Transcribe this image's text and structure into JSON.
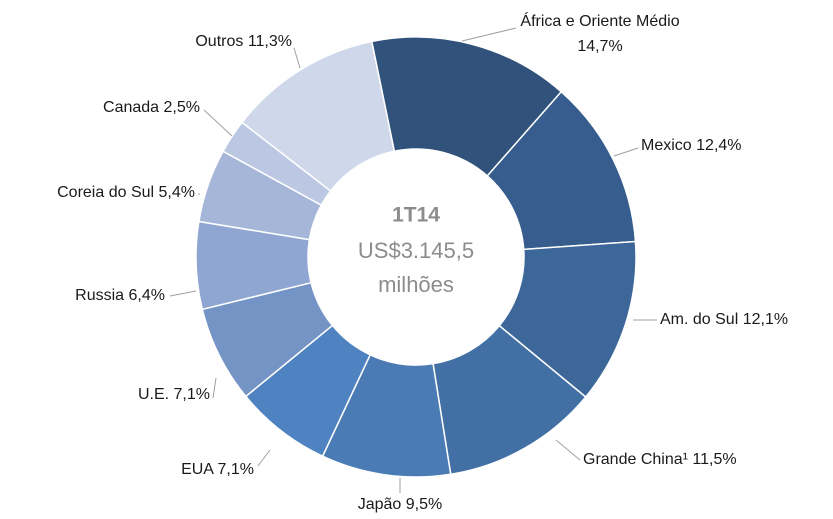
{
  "chart_data": {
    "type": "donut",
    "center_title": "1T14",
    "center_lines": [
      "US$3.145,5",
      "milhões"
    ],
    "categories": [
      "África e Oriente Médio",
      "Mexico",
      "Am. do Sul",
      "Grande China¹",
      "Japão",
      "EUA",
      "U.E.",
      "Russia",
      "Coreia do Sul",
      "Canada",
      "Outros"
    ],
    "values": [
      14.7,
      12.4,
      12.1,
      11.5,
      9.5,
      7.1,
      7.1,
      6.4,
      5.4,
      2.5,
      11.3
    ],
    "value_labels": [
      "14,7%",
      "12,4%",
      "12,1%",
      "11,5%",
      "9,5%",
      "7,1%",
      "7,1%",
      "6,4%",
      "5,4%",
      "2,5%",
      "11,3%"
    ],
    "colors": [
      "#30527b",
      "#365d8d",
      "#3c6798",
      "#4270a4",
      "#4a7bb5",
      "#4f82c0",
      "#7594c6",
      "#90a6d2",
      "#a6b6d9",
      "#bcc8e3",
      "#cfd8ea"
    ]
  }
}
